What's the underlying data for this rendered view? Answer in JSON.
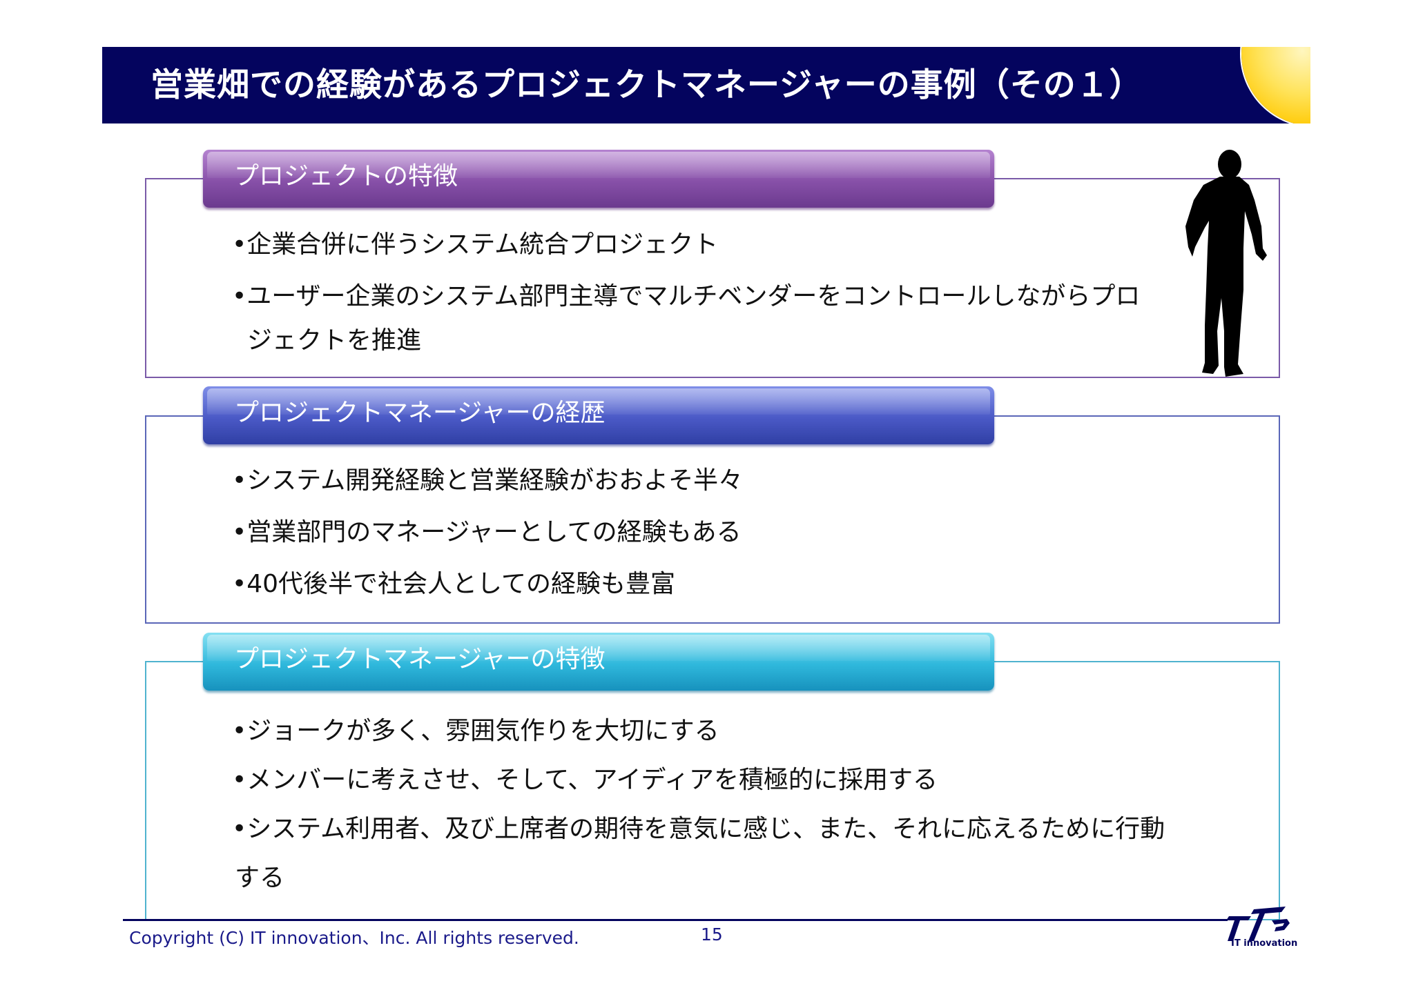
{
  "title": "営業畑での経験があるプロジェクトマネージャーの事例（その１）",
  "sections": [
    {
      "header": "プロジェクトの特徴",
      "bullets": [
        "•企業合併に伴うシステム統合プロジェクト",
        "•ユーザー企業のシステム部門主導でマルチベンダーをコントロールしながらプロ",
        "ジェクトを推進"
      ]
    },
    {
      "header": "プロジェクトマネージャーの経歴",
      "bullets": [
        "•システム開発経験と営業経験がおおよそ半々",
        "•営業部門のマネージャーとしての経験もある",
        "•40代後半で社会人としての経験も豊富"
      ]
    },
    {
      "header": "プロジェクトマネージャーの特徴",
      "bullets": [
        "•ジョークが多く、雰囲気作りを大切にする",
        "•メンバーに考えさせ、そして、アイディアを積極的に採用する",
        "•システム利用者、及び上席者の期待を意気に感じ、また、それに応えるために行動",
        "する"
      ]
    }
  ],
  "footer": {
    "copyright": "Copyright (C) IT innovation、Inc. All rights reserved.",
    "page_number": "15",
    "logo_text": "IT innovation"
  },
  "colors": {
    "title_bg": "#04045e",
    "header1": "#8750a8",
    "header2": "#4a59c6",
    "header3": "#2fb8dc",
    "sun": "#ffd21e"
  },
  "icons": [
    "sun-icon",
    "businessman-silhouette-icon",
    "company-logo-icon"
  ]
}
